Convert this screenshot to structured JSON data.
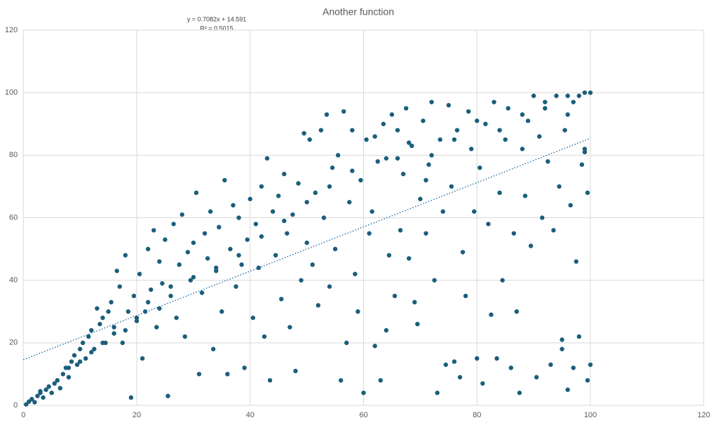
{
  "chart_data": {
    "type": "scatter",
    "title": "Another function",
    "color": "#1b5e7b",
    "grid": true,
    "xlim": [
      0,
      120
    ],
    "ylim": [
      0,
      120
    ],
    "xticks": [
      0,
      20,
      40,
      60,
      80,
      100,
      120
    ],
    "yticks": [
      0,
      20,
      40,
      60,
      80,
      100,
      120
    ],
    "trendline": {
      "equation": "y = 0.7082x + 14.591",
      "r_squared": "R² = 0.5015",
      "slope": 0.7082,
      "intercept": 14.591,
      "color": "#2e75a6"
    },
    "x": [
      0.5,
      1,
      1.5,
      2,
      2.5,
      3,
      3.5,
      4,
      4.5,
      5,
      5.5,
      6,
      6.5,
      7,
      7.5,
      8,
      8.5,
      9,
      9.5,
      10,
      10.5,
      11,
      11.5,
      12,
      12.5,
      13,
      13.5,
      14,
      14.5,
      15,
      15.5,
      16,
      16.5,
      17,
      17.5,
      18,
      18.5,
      19,
      19.5,
      20,
      20.5,
      21,
      21.5,
      22,
      22.5,
      23,
      23.5,
      24,
      24.5,
      25,
      25.5,
      26,
      26.5,
      27,
      27.5,
      28,
      28.5,
      29,
      29.5,
      30,
      30.5,
      31,
      31.5,
      32,
      32.5,
      33,
      33.5,
      34,
      34.5,
      35,
      35.5,
      36,
      36.5,
      37,
      37.5,
      38,
      38.5,
      39,
      39.5,
      40,
      40.5,
      41,
      41.5,
      42,
      42.5,
      43,
      43.5,
      44,
      44.5,
      45,
      45.5,
      46,
      46.5,
      47,
      47.5,
      48,
      48.5,
      49,
      49.5,
      50,
      50.5,
      51,
      51.5,
      52,
      52.5,
      53,
      53.5,
      54,
      54.5,
      55,
      55.5,
      56,
      56.5,
      57,
      57.5,
      58,
      58.5,
      59,
      59.5,
      60,
      60.5,
      61,
      61.5,
      62,
      62.5,
      63,
      63.5,
      64,
      64.5,
      65,
      65.5,
      66,
      66.5,
      67,
      67.5,
      68,
      68.5,
      69,
      69.5,
      70,
      70.5,
      71,
      71.5,
      72,
      72.5,
      73,
      73.5,
      74,
      74.5,
      75,
      75.5,
      76,
      76.5,
      77,
      77.5,
      78,
      78.5,
      79,
      79.5,
      80,
      80.5,
      81,
      81.5,
      82,
      82.5,
      83,
      83.5,
      84,
      84.5,
      85,
      85.5,
      86,
      86.5,
      87,
      87.5,
      88,
      88.5,
      89,
      89.5,
      90,
      90.5,
      91,
      91.5,
      92,
      92.5,
      93,
      93.5,
      94,
      94.5,
      95,
      95.5,
      96,
      96.5,
      97,
      97.5,
      98,
      98.5,
      99,
      99.5,
      100,
      88,
      92,
      96,
      99,
      84,
      80,
      76,
      72,
      68,
      64,
      58,
      54,
      50,
      46,
      42,
      38,
      34,
      30,
      26,
      22,
      18,
      14,
      10,
      6,
      3,
      8,
      12,
      16,
      20,
      24,
      99.5,
      99,
      98,
      97,
      96,
      95,
      100,
      66,
      71,
      62
    ],
    "values": [
      0.3,
      1.2,
      2,
      1,
      3,
      4.5,
      2.5,
      5,
      6,
      4,
      7,
      8,
      5.5,
      10,
      12,
      9,
      14,
      16,
      13,
      18,
      20,
      15,
      22,
      24,
      18,
      31,
      26,
      28,
      20,
      30,
      33,
      25,
      43,
      38,
      20,
      48,
      30,
      2.5,
      35,
      27,
      42,
      15,
      30,
      50,
      37,
      56,
      25,
      46,
      39,
      53,
      3,
      35,
      58,
      28,
      45,
      61,
      22,
      49,
      40,
      52,
      68,
      10,
      36,
      55,
      47,
      62,
      18,
      43,
      57,
      30,
      72,
      10,
      50,
      64,
      38,
      60,
      45,
      12,
      53,
      66,
      28,
      58,
      44,
      70,
      22,
      79,
      8,
      62,
      48,
      67,
      34,
      74,
      55,
      25,
      61,
      11,
      71,
      40,
      87,
      52,
      85,
      45,
      68,
      32,
      88,
      60,
      93,
      38,
      76,
      50,
      80,
      8,
      94,
      20,
      65,
      88,
      42,
      30,
      72,
      4,
      85,
      55,
      62,
      19,
      78,
      8,
      90,
      24,
      48,
      93,
      35,
      88,
      56,
      74,
      95,
      47,
      83,
      33,
      26,
      66,
      91,
      55,
      77,
      97,
      40,
      4,
      85,
      62,
      13,
      96,
      70,
      14,
      88,
      9,
      49,
      35,
      94,
      82,
      62,
      15,
      76,
      7,
      90,
      58,
      29,
      97,
      15,
      68,
      40,
      85,
      95,
      12,
      55,
      30,
      4,
      82,
      67,
      91,
      51,
      99,
      9,
      86,
      60,
      95,
      78,
      13,
      56,
      99,
      70,
      21,
      88,
      5,
      64,
      97,
      46,
      99,
      77,
      82,
      8,
      100,
      93,
      97,
      99,
      100,
      88,
      91,
      85,
      80,
      84,
      79,
      75,
      70,
      65,
      59,
      54,
      48,
      44,
      41,
      38,
      33,
      24,
      20,
      14,
      8,
      4,
      12,
      17,
      23,
      28,
      31,
      68,
      81,
      22,
      12,
      93,
      18,
      13,
      79,
      72,
      86
    ]
  }
}
